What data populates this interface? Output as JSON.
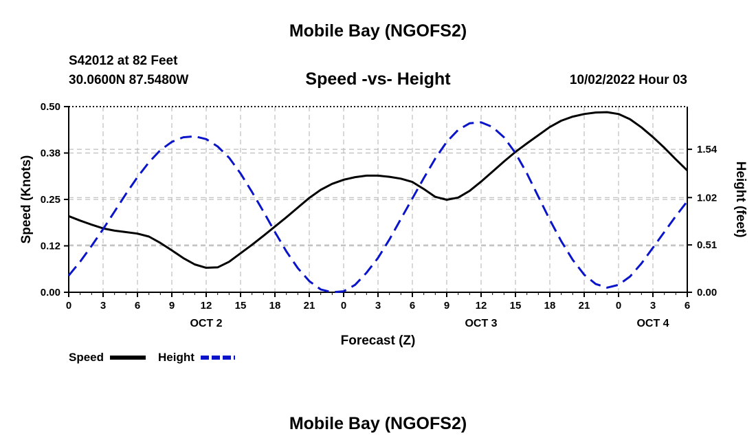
{
  "page_title": "Mobile Bay (NGOFS2)",
  "page_title_bottom": "Mobile Bay (NGOFS2)",
  "station": {
    "label": "S42012 at 82 Feet",
    "coords": "30.0600N  87.5480W"
  },
  "run_time": "10/02/2022 Hour 03",
  "chart_data": {
    "type": "line",
    "title": "Speed -vs- Height",
    "xlabel": "Forecast (Z)",
    "ylabel": "Speed (Knots)",
    "y2label": "Height (feet)",
    "x_range": [
      0,
      54
    ],
    "ylim": [
      0,
      0.5
    ],
    "y2lim": [
      0,
      2.0
    ],
    "grid": true,
    "x_ticks": [
      0,
      3,
      6,
      9,
      12,
      15,
      18,
      21,
      24,
      27,
      30,
      33,
      36,
      39,
      42,
      45,
      48,
      51,
      54
    ],
    "x_tick_labels": [
      "0",
      "3",
      "6",
      "9",
      "12",
      "15",
      "18",
      "21",
      "0",
      "3",
      "6",
      "9",
      "12",
      "15",
      "18",
      "21",
      "0",
      "3",
      "6"
    ],
    "y_ticks": [
      0.0,
      0.125,
      0.25,
      0.375,
      0.5
    ],
    "y_tick_labels": [
      "0.00",
      "0.12",
      "0.25",
      "0.38",
      "0.50"
    ],
    "y2_ticks": [
      0.0,
      0.51,
      1.02,
      1.54
    ],
    "y2_tick_labels": [
      "0.00",
      "0.51",
      "1.02",
      "1.54"
    ],
    "date_labels": [
      {
        "x": 12,
        "label": "OCT 2"
      },
      {
        "x": 36,
        "label": "OCT 3"
      },
      {
        "x": 51,
        "label": "OCT 4"
      }
    ],
    "series": [
      {
        "name": "Speed",
        "axis": "left",
        "color": "#000000",
        "dash": "solid",
        "x": [
          0,
          1,
          2,
          3,
          4,
          5,
          6,
          7,
          8,
          9,
          10,
          11,
          12,
          13,
          14,
          15,
          16,
          17,
          18,
          19,
          20,
          21,
          22,
          23,
          24,
          25,
          26,
          27,
          28,
          29,
          30,
          31,
          32,
          33,
          34,
          35,
          36,
          37,
          38,
          39,
          40,
          41,
          42,
          43,
          44,
          45,
          46,
          47,
          48,
          49,
          50,
          51,
          52,
          53,
          54
        ],
        "values": [
          0.205,
          0.193,
          0.182,
          0.172,
          0.166,
          0.162,
          0.158,
          0.15,
          0.133,
          0.113,
          0.092,
          0.075,
          0.066,
          0.067,
          0.082,
          0.105,
          0.128,
          0.152,
          0.177,
          0.202,
          0.228,
          0.254,
          0.276,
          0.292,
          0.303,
          0.31,
          0.314,
          0.314,
          0.311,
          0.306,
          0.297,
          0.278,
          0.257,
          0.249,
          0.255,
          0.273,
          0.298,
          0.325,
          0.352,
          0.378,
          0.401,
          0.423,
          0.445,
          0.462,
          0.473,
          0.48,
          0.484,
          0.485,
          0.48,
          0.466,
          0.444,
          0.418,
          0.389,
          0.358,
          0.328
        ]
      },
      {
        "name": "Height",
        "axis": "right",
        "color": "#0a14c8",
        "dash": "dashed",
        "x": [
          0,
          1,
          2,
          3,
          4,
          5,
          6,
          7,
          8,
          9,
          10,
          11,
          12,
          13,
          14,
          15,
          16,
          17,
          18,
          19,
          20,
          21,
          22,
          23,
          24,
          25,
          26,
          27,
          28,
          29,
          30,
          31,
          32,
          33,
          34,
          35,
          36,
          37,
          38,
          39,
          40,
          41,
          42,
          43,
          44,
          45,
          46,
          47,
          48,
          49,
          50,
          51,
          52,
          53,
          54
        ],
        "values": [
          0.18,
          0.33,
          0.5,
          0.68,
          0.87,
          1.06,
          1.24,
          1.4,
          1.53,
          1.62,
          1.67,
          1.68,
          1.65,
          1.57,
          1.45,
          1.28,
          1.08,
          0.87,
          0.65,
          0.44,
          0.26,
          0.12,
          0.03,
          0.0,
          0.01,
          0.08,
          0.21,
          0.37,
          0.57,
          0.79,
          1.01,
          1.23,
          1.44,
          1.62,
          1.75,
          1.82,
          1.83,
          1.78,
          1.67,
          1.5,
          1.28,
          1.03,
          0.78,
          0.55,
          0.35,
          0.19,
          0.09,
          0.05,
          0.08,
          0.17,
          0.31,
          0.48,
          0.65,
          0.82,
          0.98
        ]
      }
    ],
    "legend": [
      {
        "label": "Speed",
        "color": "#000000",
        "dash": "solid"
      },
      {
        "label": "Height",
        "color": "#0a14c8",
        "dash": "dashed"
      }
    ]
  }
}
